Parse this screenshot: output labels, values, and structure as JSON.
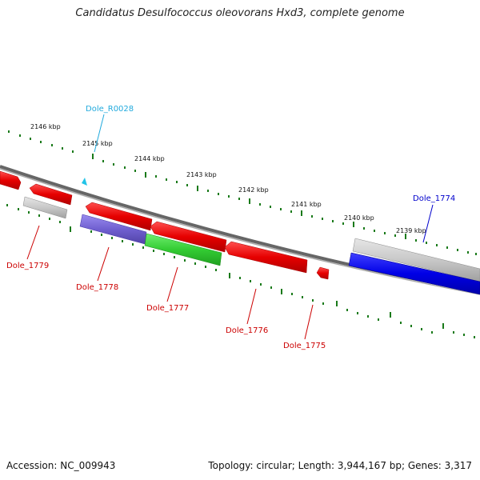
{
  "title": "Candidatus Desulfococcus oleovorans Hxd3, complete genome",
  "accession": "Accession: NC_009943",
  "topology": "Topology: circular; Length: 3,944,167 bp; Genes: 3,317",
  "colors": {
    "backbone": "#777777",
    "tick": "#1a7a1a",
    "red": "#e60000",
    "gray": "#c8c8c8",
    "purple": "#7060d0",
    "green": "#33cc33",
    "blue": "#0000e6",
    "rna": "#22c4e8",
    "label_red": "#cc0000",
    "label_blue": "#0000cc",
    "label_cyan": "#22aadd"
  },
  "kbp_labels": [
    "2146 kbp",
    "2145 kbp",
    "2144 kbp",
    "2143 kbp",
    "2142 kbp",
    "2141 kbp",
    "2140 kbp",
    "2139 kbp"
  ],
  "genes": [
    {
      "label": "Dole_1779",
      "color": "label_red"
    },
    {
      "label": "Dole_1778",
      "color": "label_red"
    },
    {
      "label": "Dole_1777",
      "color": "label_red"
    },
    {
      "label": "Dole_1776",
      "color": "label_red"
    },
    {
      "label": "Dole_1775",
      "color": "label_red"
    },
    {
      "label": "Dole_1774",
      "color": "label_blue"
    },
    {
      "label": "Dole_R0028",
      "color": "label_cyan"
    }
  ]
}
